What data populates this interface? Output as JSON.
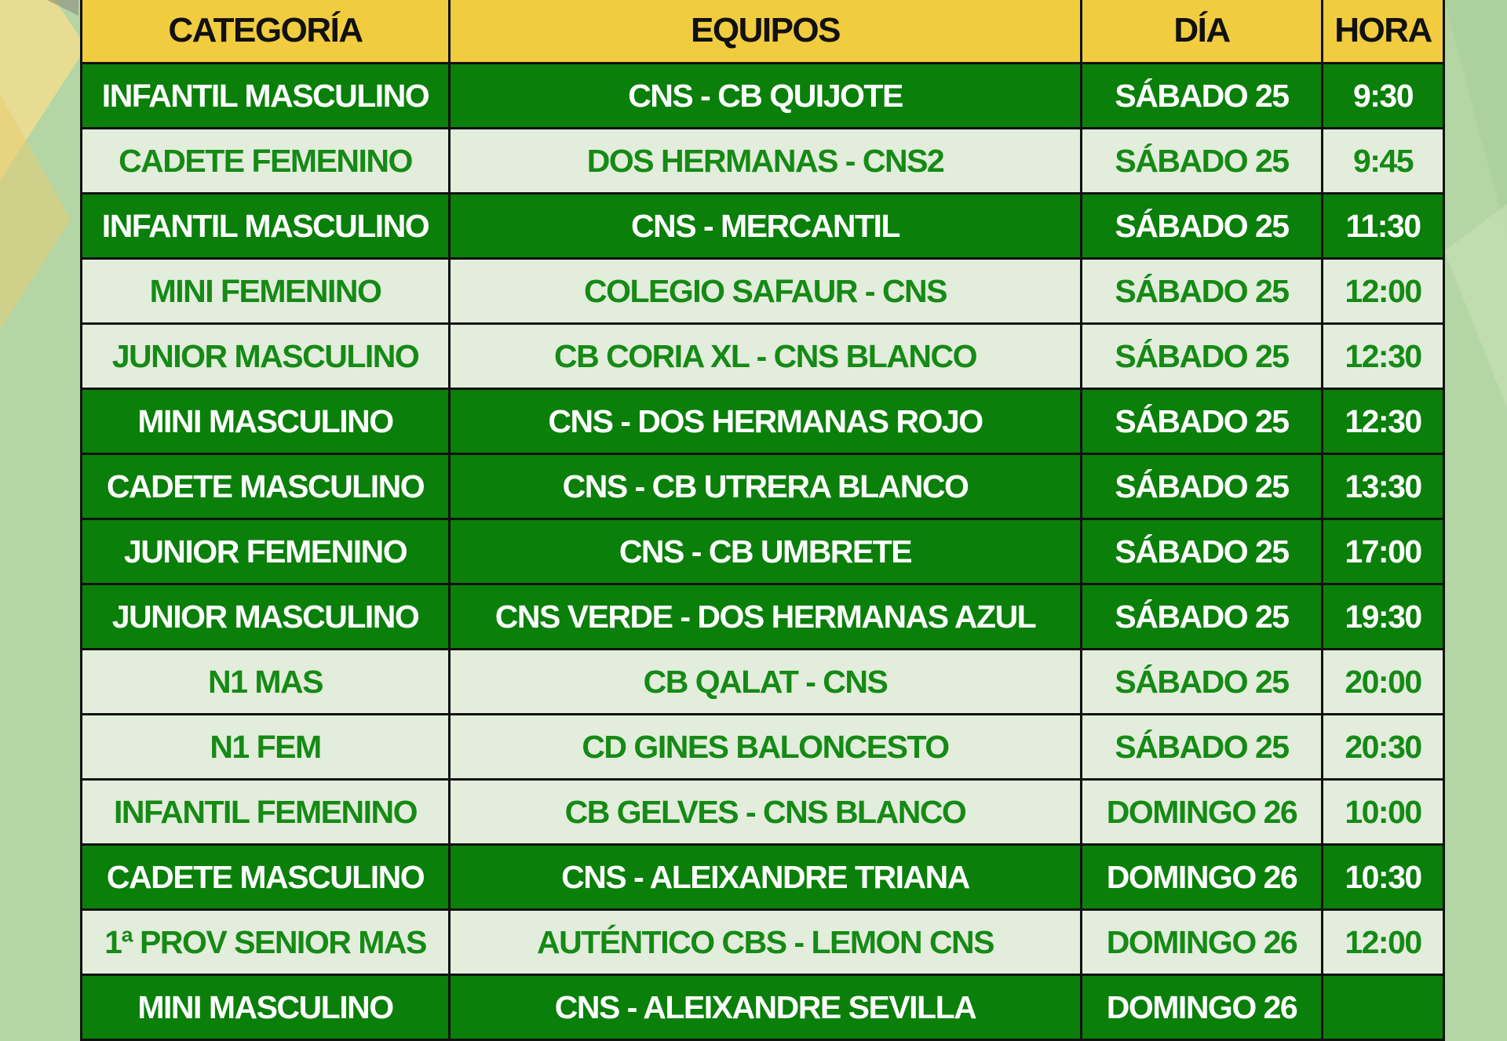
{
  "colors": {
    "header": "#f1cc3f",
    "dark_row": "#0a7f0a",
    "light_row": "#e8f0e2",
    "light_text": "#158a15",
    "background": "#b4d6a4"
  },
  "headers": [
    "CATEGORÍA",
    "EQUIPOS",
    "DÍA",
    "HORA"
  ],
  "rows": [
    {
      "style": "dark",
      "cells": [
        "INFANTIL MASCULINO",
        "CNS - CB QUIJOTE",
        "SÁBADO 25",
        "9:30"
      ]
    },
    {
      "style": "light",
      "cells": [
        "CADETE FEMENINO",
        "DOS HERMANAS - CNS2",
        "SÁBADO 25",
        "9:45"
      ]
    },
    {
      "style": "dark",
      "cells": [
        "INFANTIL MASCULINO",
        "CNS - MERCANTIL",
        "SÁBADO 25",
        "11:30"
      ]
    },
    {
      "style": "light",
      "cells": [
        "MINI FEMENINO",
        "COLEGIO SAFAUR - CNS",
        "SÁBADO 25",
        "12:00"
      ]
    },
    {
      "style": "light",
      "cells": [
        "JUNIOR MASCULINO",
        "CB CORIA XL - CNS BLANCO",
        "SÁBADO 25",
        "12:30"
      ]
    },
    {
      "style": "dark",
      "cells": [
        "MINI MASCULINO",
        "CNS - DOS HERMANAS ROJO",
        "SÁBADO 25",
        "12:30"
      ]
    },
    {
      "style": "dark",
      "cells": [
        "CADETE MASCULINO",
        "CNS - CB UTRERA BLANCO",
        "SÁBADO 25",
        "13:30"
      ]
    },
    {
      "style": "dark",
      "cells": [
        "JUNIOR FEMENINO",
        "CNS - CB UMBRETE",
        "SÁBADO 25",
        "17:00"
      ]
    },
    {
      "style": "dark",
      "cells": [
        "JUNIOR MASCULINO",
        "CNS VERDE - DOS HERMANAS AZUL",
        "SÁBADO 25",
        "19:30"
      ]
    },
    {
      "style": "light",
      "cells": [
        "N1 MAS",
        "CB QALAT - CNS",
        "SÁBADO 25",
        "20:00"
      ]
    },
    {
      "style": "light",
      "cells": [
        "N1 FEM",
        "CD GINES BALONCESTO",
        "SÁBADO 25",
        "20:30"
      ]
    },
    {
      "style": "light",
      "cells": [
        "INFANTIL FEMENINO",
        "CB GELVES - CNS BLANCO",
        "DOMINGO 26",
        "10:00"
      ]
    },
    {
      "style": "dark",
      "cells": [
        "CADETE MASCULINO",
        "CNS - ALEIXANDRE TRIANA",
        "DOMINGO 26",
        "10:30"
      ]
    },
    {
      "style": "light",
      "cells": [
        "1ª PROV SENIOR MAS",
        "AUTÉNTICO CBS - LEMON CNS",
        "DOMINGO 26",
        "12:00"
      ]
    },
    {
      "style": "dark",
      "cells": [
        "MINI MASCULINO",
        "CNS - ALEIXANDRE SEVILLA",
        "DOMINGO 26",
        ""
      ]
    }
  ]
}
